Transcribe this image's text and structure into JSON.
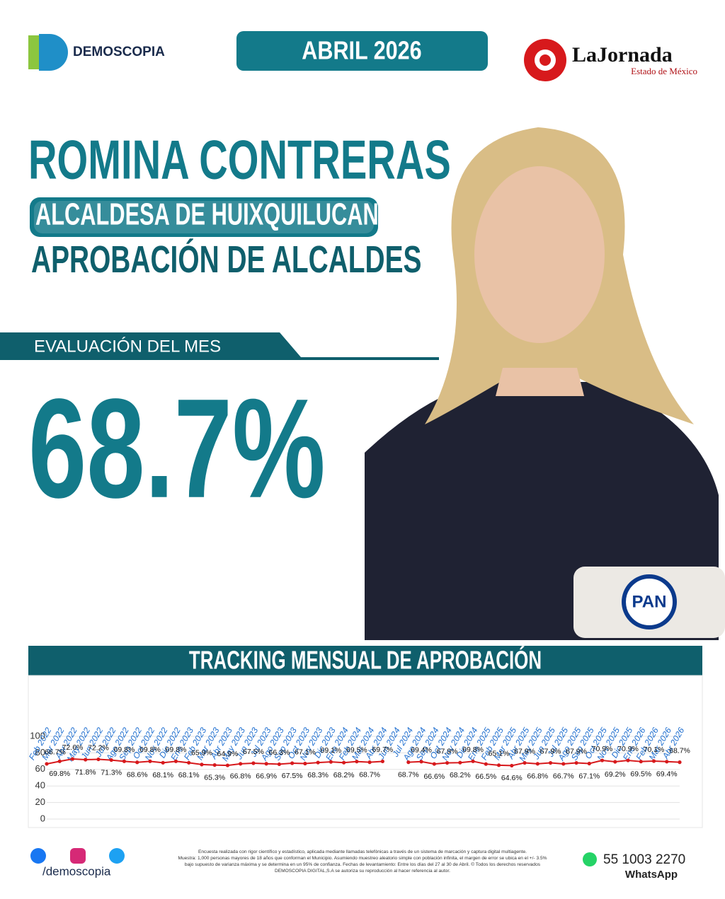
{
  "header": {
    "brand": "DEMOSCOPIA",
    "date": "ABRIL 2026",
    "partner": "LaJornada",
    "partner_sub": "Estado de México"
  },
  "person": {
    "name": "ROMINA CONTRERAS",
    "role": "ALCALDESA DE HUIXQUILUCAN",
    "survey": "APROBACIÓN DE ALCALDES",
    "eval_label": "EVALUACIÓN DEL MES",
    "eval_value": "68.7%",
    "party": "PAN"
  },
  "chart_data": {
    "type": "line",
    "title": "TRACKING MENSUAL DE APROBACIÓN",
    "categories": [
      "Feb 2022",
      "Mar 2022",
      "Abr 2022",
      "May 2022",
      "Jun 2022",
      "Jul 2022",
      "Ago 2022",
      "Sep 2022",
      "Oct 2022",
      "Nov 2022",
      "Dic 2022",
      "Ene 2023",
      "Feb 2023",
      "Mar 2023",
      "Abr 2023",
      "May 2023",
      "Jun 2023",
      "Jul 2023",
      "Ago 2023",
      "Sep 2023",
      "Oct 2023",
      "Nov 2023",
      "Dic 2023",
      "Ene 2024",
      "Feb 2024",
      "Mar 2024",
      "Abr 2024",
      "Jun 2024",
      "Jul 2024",
      "Ago 2024",
      "Sep 2024",
      "Oct 2024",
      "Nov 2024",
      "Dic 2024",
      "Ene 2025",
      "Feb 2025",
      "Mar 2025",
      "Abr 2025",
      "May 2025",
      "Jun 2025",
      "Jul 2025",
      "Ago 2025",
      "Sep 2025",
      "Oct 2025",
      "Nov 2025",
      "Dic 2025",
      "Ene 2026",
      "Feb 2026",
      "Mar 2026",
      "Abr 2026"
    ],
    "series": [
      {
        "name": "Aprobación",
        "color": "#d7191c",
        "values": [
          66.7,
          69.8,
          72.6,
          71.8,
          72.2,
          71.3,
          69.8,
          68.6,
          69.8,
          68.1,
          69.8,
          68.1,
          65.9,
          65.3,
          64.9,
          66.8,
          67.5,
          66.9,
          66.3,
          67.5,
          67.1,
          68.3,
          69.1,
          68.2,
          69.5,
          68.7,
          69.7,
          null,
          68.7,
          69.4,
          66.6,
          67.9,
          68.2,
          69.8,
          66.5,
          65.1,
          64.6,
          67.9,
          66.8,
          67.9,
          66.7,
          67.9,
          67.1,
          70.9,
          69.2,
          70.9,
          69.5,
          70.1,
          69.4,
          68.7
        ],
        "value_labels": [
          "66.7%",
          "69.8%",
          "72.6%",
          "71.8%",
          "72.2%",
          "71.3%",
          "69.8%",
          "68.6%",
          "69.8%",
          "68.1%",
          "69.8%",
          "68.1%",
          "65.9%",
          "65.3%",
          "64.9%",
          "66.8%",
          "67.5%",
          "66.9%",
          "66.3%",
          "67.5%",
          "67.1%",
          "68.3%",
          "69.1%",
          "68.2%",
          "69.5%",
          "68.7%",
          "69.7%",
          null,
          "68.7%",
          "69.4%",
          "66.6%",
          "67.9%",
          "68.2%",
          "69.8%",
          "66.5%",
          "65.1%",
          "64.6%",
          "67.9%",
          "66.8%",
          "67.9%",
          "66.7%",
          "67.9%",
          "67.1%",
          "70.9%",
          "69.2%",
          "70.9%",
          "69.5%",
          "70.1%",
          "69.4%",
          "68.7%"
        ]
      }
    ],
    "ylim": [
      0,
      100
    ],
    "yticks": [
      0,
      20,
      40,
      60,
      80,
      100
    ],
    "grid": true
  },
  "footer": {
    "handle": "/demoscopia",
    "note": [
      "Encuesta realizada con rigor científico y estadístico, aplicada mediante llamadas telefónicas a través de un sistema de marcación y captura digital multiagente.",
      "Muestra: 1,000 personas mayores de 18 años que conforman el Municipio. Asumiendo muestreo aleatorio simple con población infinita, el margen de error se ubica en el +/- 3.5%",
      "bajo supuesto de varianza máxima y se determina en un 95% de confianza. Fechas de levantamiento: Entre los días del 27 al 30 de Abril. © Todos los derechos reservados",
      "DEMOSCOPIA DIGITAL,S.A se autoriza su reproducción al hacer referencia al autor."
    ],
    "phone": "55 1003 2270",
    "phone_label": "WhatsApp"
  }
}
